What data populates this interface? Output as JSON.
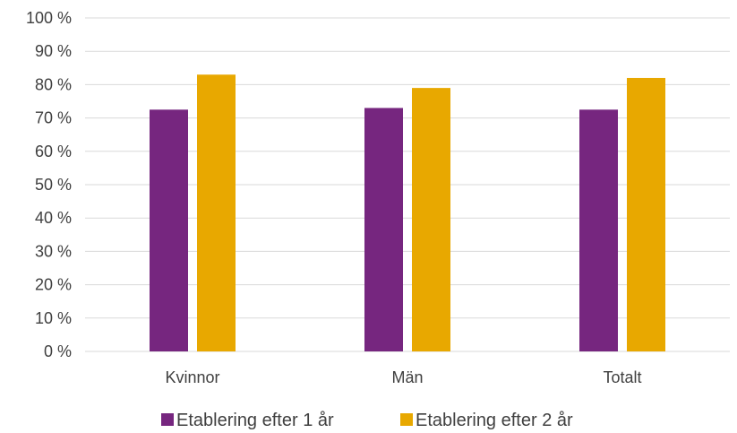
{
  "chart_data": {
    "type": "bar",
    "categories": [
      "Kvinnor",
      "Män",
      "Totalt"
    ],
    "series": [
      {
        "name": "Etablering efter 1 år",
        "values": [
          72.5,
          73,
          72.5
        ],
        "color": "#76267f"
      },
      {
        "name": "Etablering efter 2 år",
        "values": [
          83,
          79,
          82
        ],
        "color": "#e8a800"
      }
    ],
    "ylim": [
      0,
      100
    ],
    "yticks": [
      0,
      10,
      20,
      30,
      40,
      50,
      60,
      70,
      80,
      90,
      100
    ],
    "ytick_labels": [
      "0 %",
      "10 %",
      "20 %",
      "30 %",
      "40 %",
      "50 %",
      "60 %",
      "70 %",
      "80 %",
      "90 %",
      "100 %"
    ],
    "grid": true,
    "legend_position": "bottom",
    "gridline_color": "#d9d9d9"
  }
}
